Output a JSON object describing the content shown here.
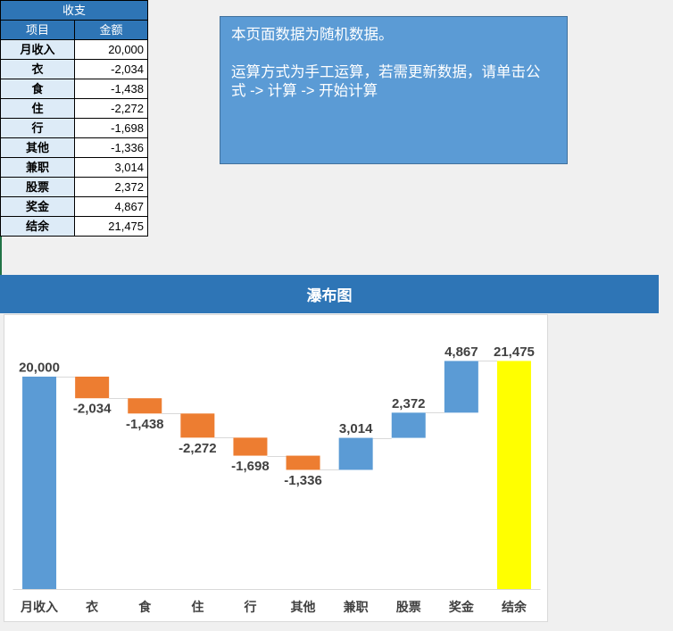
{
  "table": {
    "title": "收支",
    "headers": {
      "item": "项目",
      "amount": "金额"
    },
    "rows": [
      {
        "label": "月收入",
        "value": "20,000"
      },
      {
        "label": "衣",
        "value": "-2,034"
      },
      {
        "label": "食",
        "value": "-1,438"
      },
      {
        "label": "住",
        "value": "-2,272"
      },
      {
        "label": "行",
        "value": "-1,698"
      },
      {
        "label": "其他",
        "value": "-1,336"
      },
      {
        "label": "兼职",
        "value": "3,014"
      },
      {
        "label": "股票",
        "value": "2,372"
      },
      {
        "label": "奖金",
        "value": "4,867"
      },
      {
        "label": "结余",
        "value": "21,475"
      }
    ]
  },
  "note": {
    "line1": "本页面数据为随机数据。",
    "line2": "运算方式为手工运算，若需更新数据，请单击公式 -> 计算 -> 开始计算"
  },
  "colors": {
    "header_fill": "#2E75B6",
    "label_fill": "#DDEBF7",
    "note_fill": "#5B9BD5",
    "note_border": "#41719C",
    "title_fill": "#2E75B6"
  },
  "chart_data": {
    "type": "bar",
    "variant": "waterfall",
    "title": "瀑布图",
    "categories": [
      "月收入",
      "衣",
      "食",
      "住",
      "行",
      "其他",
      "兼职",
      "股票",
      "奖金",
      "结余"
    ],
    "values": [
      20000,
      -2034,
      -1438,
      -2272,
      -1698,
      -1336,
      3014,
      2372,
      4867,
      21475
    ],
    "data_labels": [
      "20,000",
      "-2,034",
      "-1,438",
      "-2,272",
      "-1,698",
      "-1,336",
      "3,014",
      "2,372",
      "4,867",
      "21,475"
    ],
    "totals": [
      "结余"
    ],
    "colors": {
      "increase": "#5B9BD5",
      "decrease": "#ED7D31",
      "total": "#FFFF00"
    },
    "xlabel": "",
    "ylabel": "",
    "ylim": [
      0,
      25000
    ],
    "grid": false
  }
}
